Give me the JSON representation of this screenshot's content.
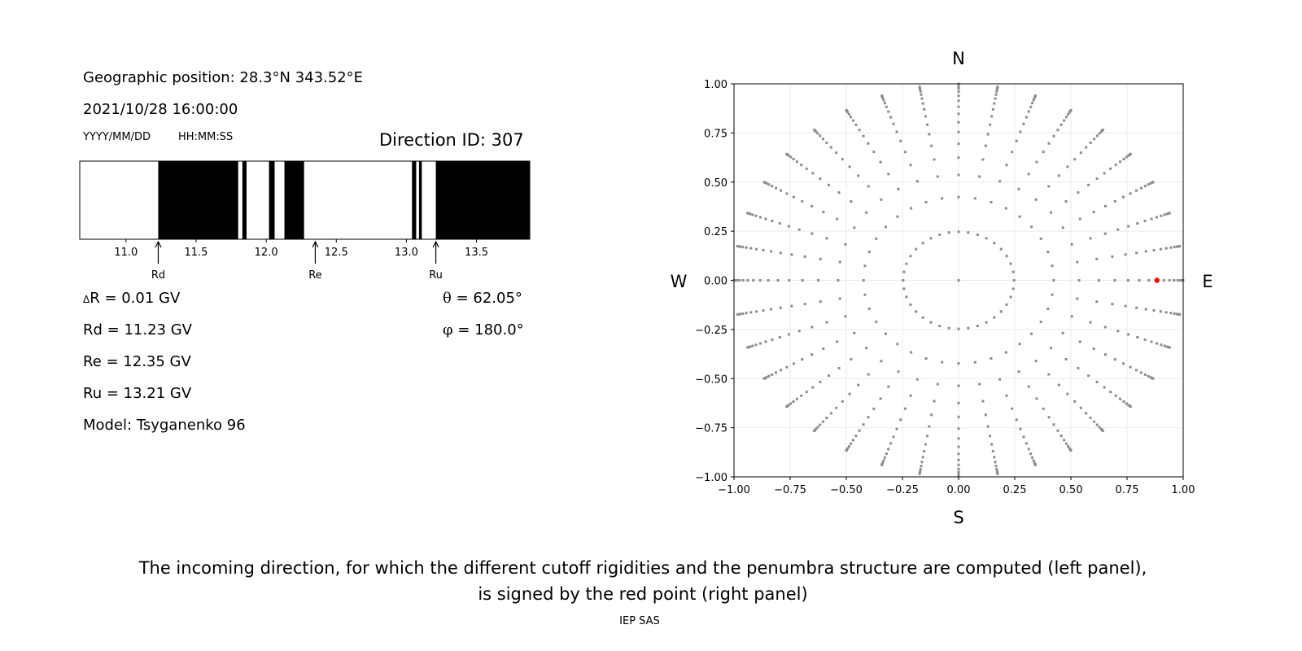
{
  "left_panel": {
    "geo_position": "Geographic position: 28.3°N 343.52°E",
    "datetime": "2021/10/28 16:00:00",
    "date_format": "YYYY/MM/DD",
    "time_format": "HH:MM:SS",
    "direction_id": "Direction ID: 307",
    "delta_r": {
      "symbol": "Δ",
      "text": "R = 0.01 GV"
    },
    "rd": "Rd = 11.23 GV",
    "re": "Re = 12.35 GV",
    "ru": "Ru = 13.21 GV",
    "model": "Model: Tsyganenko 96",
    "theta": {
      "symbol": "θ",
      "text": " = 62.05°"
    },
    "phi": {
      "symbol": "φ",
      "text": " = 180.0°"
    }
  },
  "chart_data": [
    {
      "type": "bar",
      "subtype": "penumbra",
      "xlim": [
        10.67,
        13.88
      ],
      "xticks": [
        "11.0",
        "11.5",
        "12.0",
        "12.5",
        "13.0",
        "13.5"
      ],
      "forbidden_bands_black": [
        [
          11.23,
          11.8
        ],
        [
          11.83,
          11.86
        ],
        [
          12.02,
          12.06
        ],
        [
          12.13,
          12.27
        ],
        [
          13.04,
          13.07
        ],
        [
          13.09,
          13.11
        ],
        [
          13.21,
          13.88
        ]
      ],
      "markers": [
        {
          "label": "Rd",
          "value": 11.23
        },
        {
          "label": "Re",
          "value": 12.35
        },
        {
          "label": "Ru",
          "value": 13.21
        }
      ],
      "colors": {
        "forbidden": "#000000",
        "allowed": "#ffffff"
      }
    },
    {
      "type": "scatter",
      "xlim": [
        -1,
        1
      ],
      "ylim": [
        -1,
        1
      ],
      "xticks": [
        "−1.00",
        "−0.75",
        "−0.50",
        "−0.25",
        "0.00",
        "0.25",
        "0.50",
        "0.75",
        "1.00"
      ],
      "yticks": [
        "−1.00",
        "−0.75",
        "−0.50",
        "−0.25",
        "0.00",
        "0.25",
        "0.50",
        "0.75",
        "1.00"
      ],
      "grid": true,
      "compass": {
        "n": "N",
        "s": "S",
        "e": "E",
        "w": "W"
      },
      "grid_points": {
        "zenith_cos_values": [
          1,
          0.969,
          0.906,
          0.844,
          0.781,
          0.719,
          0.656,
          0.594,
          0.531,
          0.469,
          0.406,
          0.344,
          0.281,
          0.219,
          0.156,
          0.094,
          0.031
        ],
        "azimuth_step_deg": 10,
        "color": "#8c8c8c"
      },
      "selected_point": {
        "theta_deg": 62.05,
        "phi_deg": 180.0,
        "color": "#ff0000"
      }
    }
  ],
  "caption": {
    "line1": "The incoming direction, for which the different cutoff rigidities and the penumbra structure are computed (left panel),",
    "line2": "is signed by the red point (right panel)",
    "credit": "IEP SAS"
  }
}
